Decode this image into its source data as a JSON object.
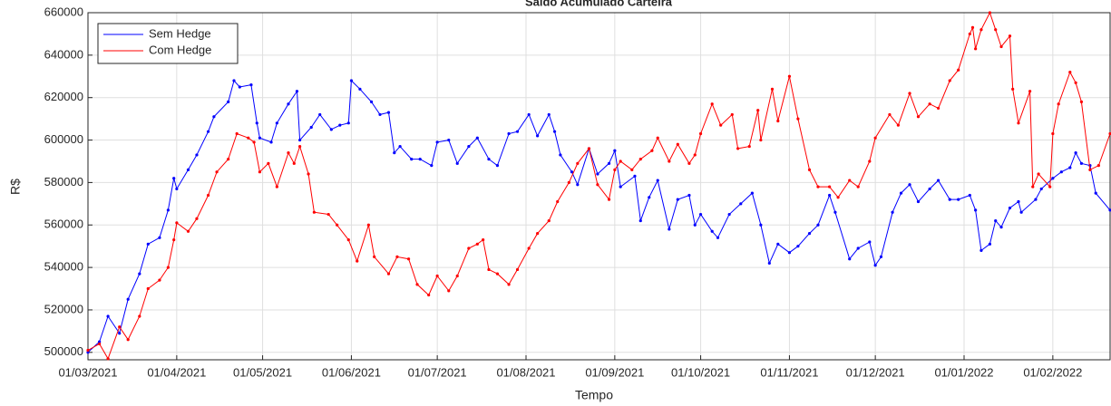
{
  "chart_data": {
    "type": "line",
    "title": "Saldo Acumulado Carteira",
    "xlabel": "Tempo",
    "ylabel": "R$",
    "ylim": [
      496500,
      660000
    ],
    "yticks": [
      500000,
      520000,
      540000,
      560000,
      580000,
      600000,
      620000,
      640000,
      660000
    ],
    "xlim": [
      "01/03/2021",
      "21/02/2022"
    ],
    "xticks": [
      "01/03/2021",
      "01/04/2021",
      "01/05/2021",
      "01/06/2021",
      "01/07/2021",
      "01/08/2021",
      "01/09/2021",
      "01/10/2021",
      "01/11/2021",
      "01/12/2021",
      "01/01/2022",
      "01/02/2022"
    ],
    "grid": true,
    "legend": "northwest",
    "series": [
      {
        "name": "Sem Hedge",
        "color": "#0000ff",
        "x": [
          "01/03/2021",
          "05/03/2021",
          "08/03/2021",
          "12/03/2021",
          "15/03/2021",
          "19/03/2021",
          "22/03/2021",
          "26/03/2021",
          "29/03/2021",
          "31/03/2021",
          "01/04/2021",
          "05/04/2021",
          "08/04/2021",
          "12/04/2021",
          "14/04/2021",
          "19/04/2021",
          "21/04/2021",
          "23/04/2021",
          "27/04/2021",
          "29/04/2021",
          "30/04/2021",
          "04/05/2021",
          "06/05/2021",
          "10/05/2021",
          "13/05/2021",
          "14/05/2021",
          "18/05/2021",
          "21/05/2021",
          "25/05/2021",
          "28/05/2021",
          "31/05/2021",
          "01/06/2021",
          "04/06/2021",
          "08/06/2021",
          "11/06/2021",
          "14/06/2021",
          "16/06/2021",
          "18/06/2021",
          "22/06/2021",
          "25/06/2021",
          "29/06/2021",
          "01/07/2021",
          "05/07/2021",
          "08/07/2021",
          "12/07/2021",
          "15/07/2021",
          "19/07/2021",
          "22/07/2021",
          "26/07/2021",
          "29/07/2021",
          "02/08/2021",
          "05/08/2021",
          "09/08/2021",
          "11/08/2021",
          "13/08/2021",
          "17/08/2021",
          "19/08/2021",
          "23/08/2021",
          "26/08/2021",
          "30/08/2021",
          "01/09/2021",
          "03/09/2021",
          "08/09/2021",
          "10/09/2021",
          "13/09/2021",
          "16/09/2021",
          "20/09/2021",
          "23/09/2021",
          "27/09/2021",
          "29/09/2021",
          "01/10/2021",
          "05/10/2021",
          "07/10/2021",
          "11/10/2021",
          "15/10/2021",
          "19/10/2021",
          "22/10/2021",
          "25/10/2021",
          "28/10/2021",
          "01/11/2021",
          "04/11/2021",
          "08/11/2021",
          "11/11/2021",
          "15/11/2021",
          "17/11/2021",
          "22/11/2021",
          "25/11/2021",
          "29/11/2021",
          "01/12/2021",
          "03/12/2021",
          "07/12/2021",
          "10/12/2021",
          "13/12/2021",
          "16/12/2021",
          "20/12/2021",
          "23/12/2021",
          "27/12/2021",
          "30/12/2021",
          "03/01/2022",
          "05/01/2022",
          "07/01/2022",
          "10/01/2022",
          "12/01/2022",
          "14/01/2022",
          "17/01/2022",
          "20/01/2022",
          "21/01/2022",
          "26/01/2022",
          "28/01/2022",
          "01/02/2022",
          "04/02/2022",
          "07/02/2022",
          "09/02/2022",
          "11/02/2022",
          "14/02/2022",
          "16/02/2022",
          "21/02/2022"
        ],
        "values": [
          500000,
          505000,
          517000,
          509000,
          525000,
          537000,
          551000,
          554000,
          567000,
          582000,
          577000,
          586000,
          593000,
          604000,
          611000,
          618000,
          628000,
          625000,
          626000,
          608000,
          601000,
          599000,
          608000,
          617000,
          623000,
          600000,
          606000,
          612000,
          605000,
          607000,
          608000,
          628000,
          624000,
          618000,
          612000,
          613000,
          594000,
          597000,
          591000,
          591000,
          588000,
          599000,
          600000,
          589000,
          597000,
          601000,
          591000,
          588000,
          603000,
          604000,
          612000,
          602000,
          612000,
          604000,
          593000,
          585000,
          579000,
          596000,
          584000,
          589000,
          595000,
          578000,
          583000,
          562000,
          573000,
          581000,
          558000,
          572000,
          574000,
          560000,
          565000,
          557000,
          554000,
          565000,
          570000,
          575000,
          560000,
          542000,
          551000,
          547000,
          550000,
          556000,
          560000,
          574000,
          566000,
          544000,
          549000,
          552000,
          541000,
          545000,
          566000,
          575000,
          579000,
          571000,
          577000,
          581000,
          572000,
          572000,
          574000,
          567000,
          548000,
          551000,
          562000,
          559000,
          568000,
          571000,
          566000,
          572000,
          577000,
          582000,
          585000,
          587000,
          594000,
          589000,
          588000,
          575000,
          567000
        ]
      },
      {
        "name": "Com Hedge",
        "color": "#ff0000",
        "x": [
          "01/03/2021",
          "05/03/2021",
          "08/03/2021",
          "12/03/2021",
          "15/03/2021",
          "19/03/2021",
          "22/03/2021",
          "26/03/2021",
          "29/03/2021",
          "31/03/2021",
          "01/04/2021",
          "05/04/2021",
          "08/04/2021",
          "12/04/2021",
          "15/04/2021",
          "19/04/2021",
          "22/04/2021",
          "26/04/2021",
          "28/04/2021",
          "30/04/2021",
          "03/05/2021",
          "06/05/2021",
          "10/05/2021",
          "12/05/2021",
          "14/05/2021",
          "17/05/2021",
          "19/05/2021",
          "24/05/2021",
          "27/05/2021",
          "31/05/2021",
          "03/06/2021",
          "07/06/2021",
          "09/06/2021",
          "14/06/2021",
          "17/06/2021",
          "21/06/2021",
          "24/06/2021",
          "28/06/2021",
          "01/07/2021",
          "05/07/2021",
          "08/07/2021",
          "12/07/2021",
          "15/07/2021",
          "17/07/2021",
          "19/07/2021",
          "22/07/2021",
          "26/07/2021",
          "29/07/2021",
          "02/08/2021",
          "05/08/2021",
          "09/08/2021",
          "12/08/2021",
          "16/08/2021",
          "19/08/2021",
          "23/08/2021",
          "26/08/2021",
          "30/08/2021",
          "01/09/2021",
          "03/09/2021",
          "07/09/2021",
          "10/09/2021",
          "14/09/2021",
          "16/09/2021",
          "20/09/2021",
          "23/09/2021",
          "27/09/2021",
          "29/09/2021",
          "01/10/2021",
          "05/10/2021",
          "08/10/2021",
          "12/10/2021",
          "14/10/2021",
          "18/10/2021",
          "21/10/2021",
          "22/10/2021",
          "26/10/2021",
          "28/10/2021",
          "01/11/2021",
          "04/11/2021",
          "08/11/2021",
          "11/11/2021",
          "15/11/2021",
          "18/11/2021",
          "22/11/2021",
          "25/11/2021",
          "29/11/2021",
          "01/12/2021",
          "06/12/2021",
          "09/12/2021",
          "13/12/2021",
          "16/12/2021",
          "20/12/2021",
          "23/12/2021",
          "27/12/2021",
          "30/12/2021",
          "03/01/2022",
          "04/01/2022",
          "05/01/2022",
          "07/01/2022",
          "10/01/2022",
          "12/01/2022",
          "14/01/2022",
          "17/01/2022",
          "18/01/2022",
          "20/01/2022",
          "24/01/2022",
          "25/01/2022",
          "27/01/2022",
          "31/01/2022",
          "01/02/2022",
          "03/02/2022",
          "07/02/2022",
          "09/02/2022",
          "11/02/2022",
          "14/02/2022",
          "17/02/2022",
          "21/02/2022"
        ],
        "values": [
          501000,
          504000,
          497000,
          512000,
          506000,
          517000,
          530000,
          534000,
          540000,
          553000,
          561000,
          557000,
          563000,
          574000,
          585000,
          591000,
          603000,
          601000,
          599000,
          585000,
          589000,
          578000,
          594000,
          589000,
          597000,
          584000,
          566000,
          565000,
          560000,
          553000,
          543000,
          560000,
          545000,
          537000,
          545000,
          544000,
          532000,
          527000,
          536000,
          529000,
          536000,
          549000,
          551000,
          553000,
          539000,
          537000,
          532000,
          539000,
          549000,
          556000,
          562000,
          571000,
          580000,
          589000,
          596000,
          579000,
          572000,
          586000,
          590000,
          586000,
          591000,
          595000,
          601000,
          590000,
          598000,
          589000,
          593000,
          603000,
          617000,
          607000,
          612000,
          596000,
          597000,
          614000,
          600000,
          624000,
          609000,
          630000,
          610000,
          586000,
          578000,
          578000,
          573000,
          581000,
          578000,
          590000,
          601000,
          612000,
          607000,
          622000,
          611000,
          617000,
          615000,
          628000,
          633000,
          650000,
          653000,
          643000,
          652000,
          660000,
          652000,
          644000,
          649000,
          624000,
          608000,
          623000,
          578000,
          584000,
          578000,
          603000,
          617000,
          632000,
          627000,
          618000,
          586000,
          588000,
          603000
        ]
      }
    ]
  }
}
